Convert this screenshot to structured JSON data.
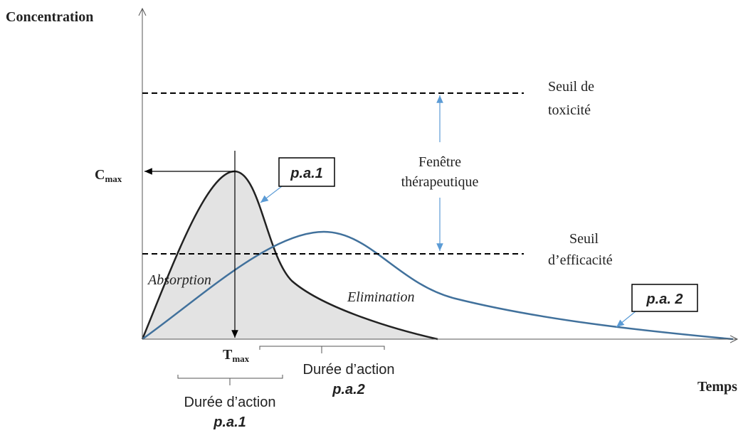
{
  "y_axis_label": "Concentration",
  "x_axis_label": "Temps",
  "toxicity_threshold": [
    "Seuil de",
    "toxicité"
  ],
  "efficacy_threshold": [
    "Seuil",
    "d’efficacité"
  ],
  "therapeutic_window": [
    "Fenêtre",
    "thérapeutique"
  ],
  "cmax": {
    "main": "C",
    "sub": "max"
  },
  "tmax": {
    "main": "T",
    "sub": "max"
  },
  "absorption": "Absorption",
  "elimination": "Elimination",
  "drug1": "p.a.1",
  "drug2": "p.a. 2",
  "duration_drug2": [
    "Durée d’action",
    "p.a.2"
  ],
  "duration_drug1": [
    "Durée d’action",
    "p.a.1"
  ]
}
